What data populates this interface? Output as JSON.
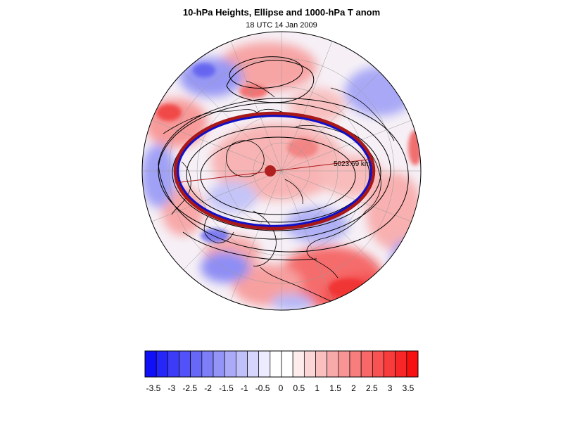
{
  "figure": {
    "title": "10-hPa Heights, Ellipse and 1000-hPa T anom",
    "subtitle": "18 UTC 14 Jan 2009"
  },
  "map": {
    "projection": "polar stereographic (north pole)",
    "field": "1000-hPa temperature anomaly (shaded)",
    "contours": "10-hPa geopotential heights",
    "ellipse_label": "5023.69 km",
    "colors": {
      "ellipse_outer": "#a81818",
      "ellipse_inner": "#1010c8",
      "centroid": "#b02020",
      "contour": "#000000",
      "grid": "#9a9a9a"
    }
  },
  "colorbar": {
    "tick_labels": [
      "-3.5",
      "-3",
      "-2.5",
      "-2",
      "-1.5",
      "-1",
      "-0.5",
      "0",
      "0.5",
      "1",
      "1.5",
      "2",
      "2.5",
      "3",
      "3.5"
    ],
    "colors": [
      "#1010f8",
      "#2626f8",
      "#3c3cf8",
      "#5252f8",
      "#6868f8",
      "#7e7ef8",
      "#9494f8",
      "#aaaaf8",
      "#c0c0fa",
      "#d6d6fc",
      "#ececfe",
      "#ffffff",
      "#ffffff",
      "#feecec",
      "#fcd6d6",
      "#fac0c0",
      "#f8aaaa",
      "#f89494",
      "#f87e7e",
      "#f86868",
      "#f85252",
      "#f83c3c",
      "#f82626",
      "#f81010"
    ]
  }
}
